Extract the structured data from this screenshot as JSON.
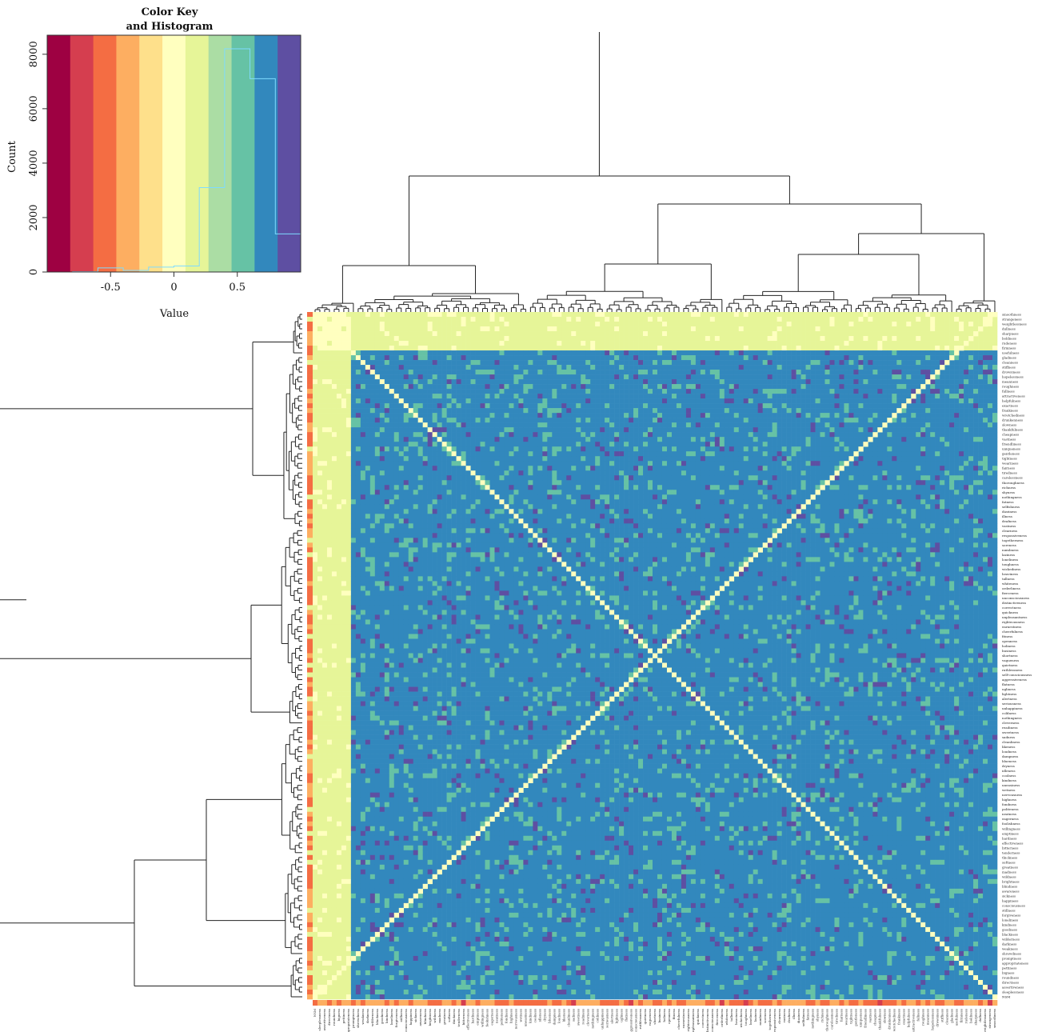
{
  "chart_data": {
    "type": "heatmap",
    "color_key": {
      "title_line1": "Color Key",
      "title_line2": "and Histogram",
      "xlabel": "Value",
      "ylabel": "Count",
      "x_ticks": [
        "-0.5",
        "0",
        "0.5"
      ],
      "x_tick_values": [
        -0.5,
        0,
        0.5
      ],
      "y_ticks": [
        "0",
        "2000",
        "4000",
        "6000",
        "8000"
      ],
      "y_tick_values": [
        0,
        2000,
        4000,
        6000,
        8000
      ],
      "xlim": [
        -1,
        1
      ],
      "ylim": [
        0,
        8700
      ],
      "bin_edges": [
        -1.0,
        -0.8,
        -0.6,
        -0.4,
        -0.2,
        0.0,
        0.2,
        0.4,
        0.6,
        0.8,
        1.0
      ],
      "bin_colors": [
        "#9E0142",
        "#D53E4F",
        "#F46D43",
        "#FDAE61",
        "#FEE08B",
        "#FFFFBF",
        "#E6F598",
        "#ABDDA4",
        "#66C2A5",
        "#3288BD",
        "#5E4FA2"
      ],
      "histogram_counts": [
        0,
        10,
        150,
        60,
        180,
        220,
        3100,
        8200,
        7100,
        1400
      ],
      "histogram_color": "#7FDBFF"
    },
    "heatmap": {
      "matrix_type": "symmetric correlation",
      "value_range": [
        -1,
        1
      ],
      "palette": [
        "#9E0142",
        "#D53E4F",
        "#F46D43",
        "#FDAE61",
        "#FEE08B",
        "#FFFFBF",
        "#E6F598",
        "#ABDDA4",
        "#66C2A5",
        "#3288BD",
        "#5E4FA2"
      ],
      "row_labels": [
        "smoothness",
        "strangeness",
        "weightlessness",
        "dullness",
        "sharpness",
        "boldness",
        "rudeness",
        "firmness",
        "usefulness",
        "gladness",
        "cleanness",
        "stiffness",
        "drowsiness",
        "hopelessness",
        "meanness",
        "roughness",
        "fullness",
        "attractiveness",
        "helpfulness",
        "exactness",
        "frankness",
        "wretchedness",
        "drunkenness",
        "slowness",
        "thankfulness",
        "cheapness",
        "vastness",
        "friendliness",
        "uniqueness",
        "gentleness",
        "tightness",
        "weariness",
        "fairness",
        "tiredness",
        "carelessness",
        "thoroughness",
        "richness",
        "shyness",
        "nothingness",
        "fatness",
        "selfishness",
        "dizziness",
        "illness",
        "deafness",
        "vastness",
        "clearness",
        "responsiveness",
        "togetherness",
        "soreness",
        "numbness",
        "laziness",
        "loneliness",
        "toughness",
        "wickedness",
        "heaviness",
        "tallness",
        "whiteness",
        "orderliness",
        "fierceness",
        "unconsciousness",
        "distinctiveness",
        "correctness",
        "quickness",
        "unpleasantness",
        "righteousness",
        "earnestness",
        "cheerfulness",
        "fitness",
        "openness",
        "holiness",
        "business",
        "shortness",
        "vagueness",
        "quietness",
        "ruthlessness",
        "self-consciousness",
        "aggressiveness",
        "flatness",
        "ugliness",
        "lightness",
        "alertness",
        "seriousness",
        "unhappiness",
        "coldness",
        "nothingness",
        "cleverness",
        "readiness",
        "sweetness",
        "sadness",
        "cleanliness",
        "likeness",
        "loudness",
        "dampness",
        "blueness",
        "dryness",
        "idleness",
        "coolness",
        "kindness",
        "uneasiness",
        "wetness",
        "nervousness",
        "highness",
        "fondness",
        "politeness",
        "neatness",
        "eagerness",
        "foolishness",
        "willingness",
        "emptiness",
        "hardness",
        "effectiveness",
        "bitterness",
        "tenderness",
        "thickness",
        "softness",
        "greatness",
        "madness",
        "wildness",
        "brightness",
        "blindness",
        "awareness",
        "sickness",
        "happiness",
        "consciousness",
        "stillness",
        "forgiveness",
        "loneliness",
        "kindness",
        "goodness",
        "blackness",
        "wilderness",
        "darkness",
        "weakness",
        "shrewdness",
        "promptness",
        "appropriateness",
        "pettiness",
        "bigness",
        "roundness",
        "directness",
        "assertiveness",
        "sleeplessness",
        "NSM"
      ],
      "col_labels": [
        "NSM",
        "sleeplessness",
        "assertiveness",
        "directness",
        "roundness",
        "bigness",
        "pettiness",
        "appropriateness",
        "promptness",
        "shrewdness",
        "weakness",
        "darkness",
        "wilderness",
        "blackness",
        "goodness",
        "kindness",
        "loneliness",
        "forgiveness",
        "stillness",
        "consciousness",
        "happiness",
        "sickness",
        "awareness",
        "blindness",
        "brightness",
        "wildness",
        "madness",
        "greatness",
        "softness",
        "thickness",
        "tenderness",
        "bitterness",
        "effectiveness",
        "hardness",
        "emptiness",
        "willingness",
        "foolishness",
        "eagerness",
        "neatness",
        "politeness",
        "fondness",
        "highness",
        "nervousness",
        "wetness",
        "uneasiness",
        "kindness",
        "coolness",
        "idleness",
        "dryness",
        "blueness",
        "dampness",
        "loudness",
        "likeness",
        "cleanliness",
        "sadness",
        "sweetness",
        "readiness",
        "cleverness",
        "nothingness",
        "coldness",
        "unhappiness",
        "seriousness",
        "alertness",
        "lightness",
        "ugliness",
        "flatness",
        "aggressiveness",
        "self-consciousness",
        "ruthlessness",
        "quietness",
        "vagueness",
        "shortness",
        "business",
        "holiness",
        "openness",
        "fitness",
        "cheerfulness",
        "earnestness",
        "righteousness",
        "unpleasantness",
        "quickness",
        "correctness",
        "distinctiveness",
        "unconsciousness",
        "fierceness",
        "orderliness",
        "whiteness",
        "tallness",
        "heaviness",
        "wickedness",
        "toughness",
        "loneliness",
        "laziness",
        "numbness",
        "soreness",
        "togetherness",
        "responsiveness",
        "clearness",
        "vastness",
        "deafness",
        "illness",
        "dizziness",
        "selfishness",
        "fatness",
        "nothingness",
        "shyness",
        "richness",
        "thoroughness",
        "carelessness",
        "tiredness",
        "fairness",
        "weariness",
        "tightness",
        "gentleness",
        "uniqueness",
        "friendliness",
        "vastness",
        "cheapness",
        "thankfulness",
        "slowness",
        "drunkenness",
        "wretchedness",
        "frankness",
        "exactness",
        "helpfulness",
        "attractiveness",
        "fullness",
        "roughness",
        "meanness",
        "hopelessness",
        "drowsiness",
        "stiffness",
        "cleanness",
        "gladness",
        "usefulness",
        "firmness",
        "rudeness",
        "boldness",
        "sharpness",
        "dullness",
        "weightlessness",
        "strangeness",
        "smoothness"
      ]
    }
  }
}
